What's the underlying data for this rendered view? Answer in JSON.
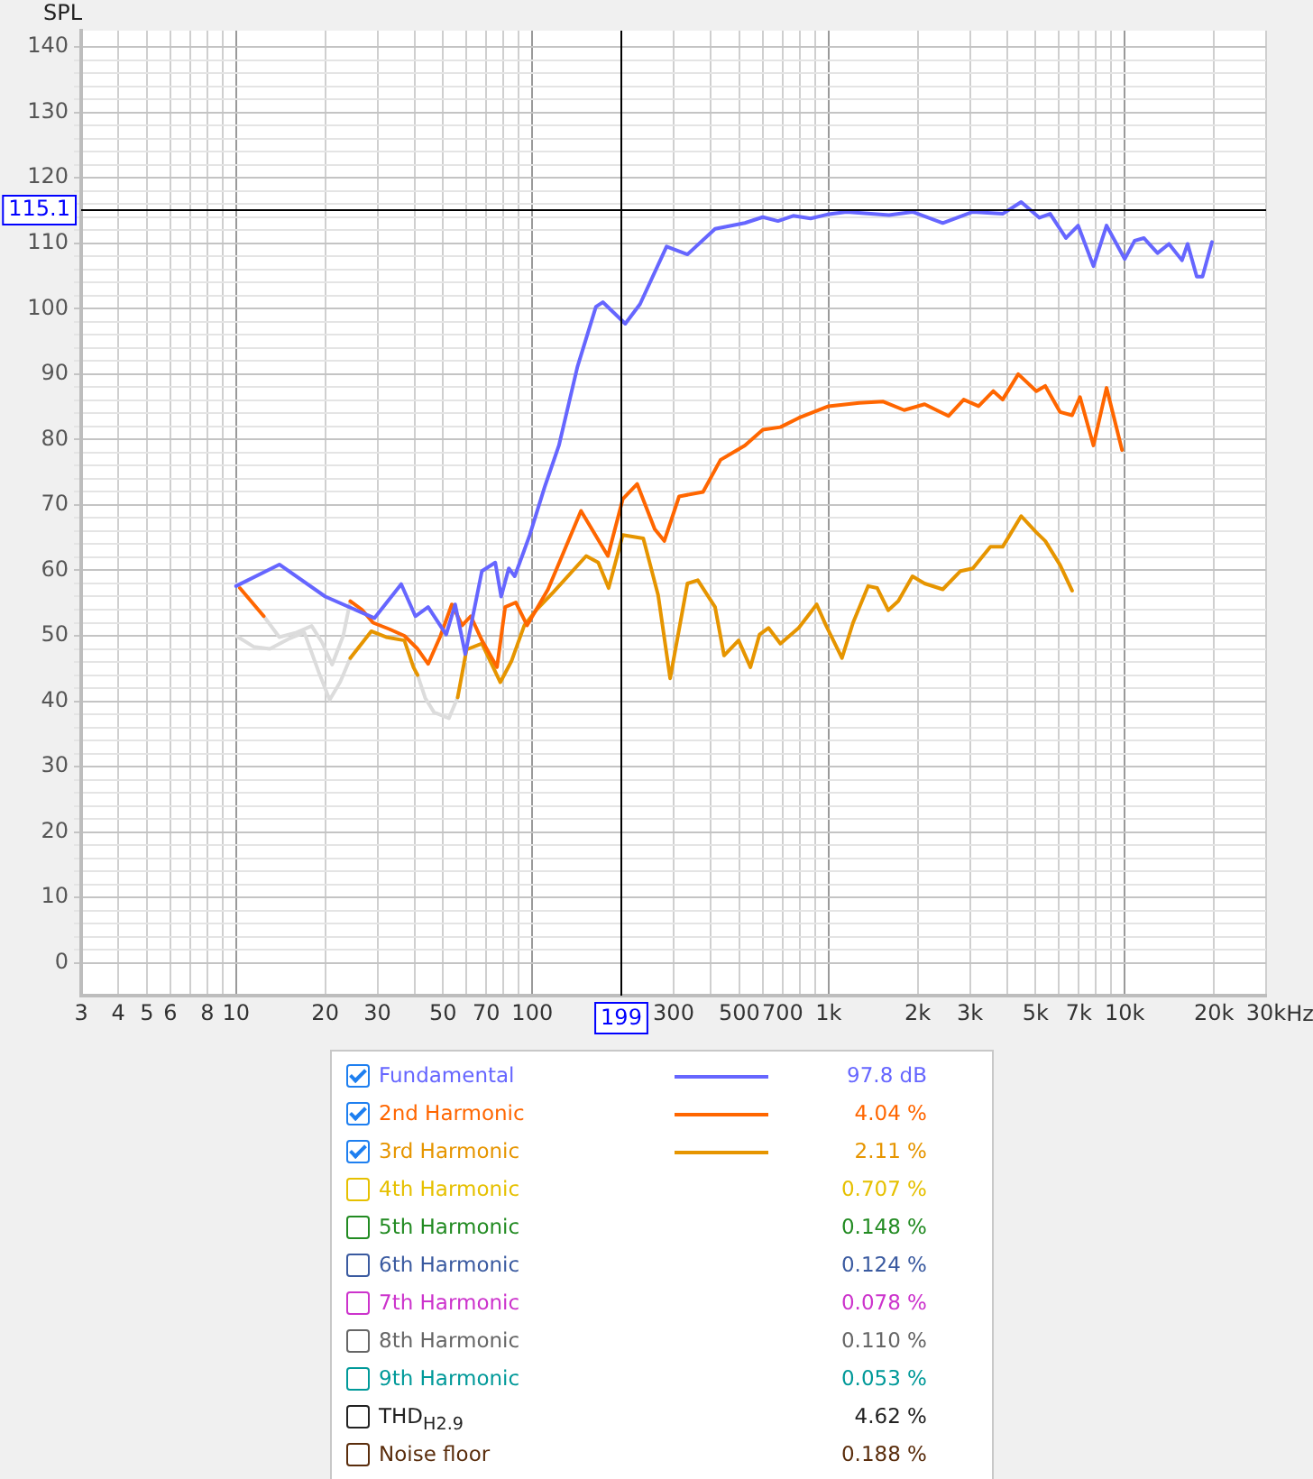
{
  "chart_data": {
    "type": "line",
    "ylabel": "SPL",
    "log": "x",
    "grid": true,
    "legend": "bottom",
    "xlim": [
      3,
      30000
    ],
    "ylim": [
      -5,
      142.5
    ],
    "xticks": [
      3,
      4,
      5,
      6,
      {
        "value": 7,
        "label": null
      },
      8,
      {
        "value": 9,
        "label": null
      },
      10,
      20,
      30,
      {
        "value": 40,
        "label": null
      },
      50,
      {
        "value": 60,
        "label": null
      },
      70,
      {
        "value": 80,
        "label": null
      },
      {
        "value": 90,
        "label": null
      },
      100,
      {
        "value": 200,
        "label": null
      },
      300,
      {
        "value": 400,
        "label": null
      },
      500,
      {
        "value": 600,
        "label": null
      },
      700,
      {
        "value": 800,
        "label": null
      },
      {
        "value": 900,
        "label": null
      },
      {
        "value": 1000,
        "label": "1k"
      },
      {
        "value": 2000,
        "label": "2k"
      },
      {
        "value": 3000,
        "label": "3k"
      },
      {
        "value": 4000,
        "label": null
      },
      {
        "value": 5000,
        "label": "5k"
      },
      {
        "value": 6000,
        "label": null
      },
      {
        "value": 7000,
        "label": "7k"
      },
      {
        "value": 8000,
        "label": null
      },
      {
        "value": 9000,
        "label": null
      },
      {
        "value": 10000,
        "label": "10k"
      },
      {
        "value": 20000,
        "label": "20k"
      },
      {
        "value": 30000,
        "label": "30k"
      }
    ],
    "xlabel": "Hz",
    "yticks": [
      0,
      {
        "value": 2,
        "label": null
      },
      {
        "value": 4,
        "label": null
      },
      {
        "value": 6,
        "label": null
      },
      {
        "value": 8,
        "label": null
      },
      10,
      {
        "value": 12,
        "label": null
      },
      {
        "value": 14,
        "label": null
      },
      {
        "value": 16,
        "label": null
      },
      {
        "value": 18,
        "label": null
      },
      20,
      {
        "value": 22,
        "label": null
      },
      {
        "value": 24,
        "label": null
      },
      {
        "value": 26,
        "label": null
      },
      {
        "value": 28,
        "label": null
      },
      30,
      {
        "value": 32,
        "label": null
      },
      {
        "value": 34,
        "label": null
      },
      {
        "value": 36,
        "label": null
      },
      {
        "value": 38,
        "label": null
      },
      40,
      {
        "value": 42,
        "label": null
      },
      {
        "value": 44,
        "label": null
      },
      {
        "value": 46,
        "label": null
      },
      {
        "value": 48,
        "label": null
      },
      50,
      {
        "value": 52,
        "label": null
      },
      {
        "value": 54,
        "label": null
      },
      {
        "value": 56,
        "label": null
      },
      {
        "value": 58,
        "label": null
      },
      60,
      {
        "value": 62,
        "label": null
      },
      {
        "value": 64,
        "label": null
      },
      {
        "value": 66,
        "label": null
      },
      {
        "value": 68,
        "label": null
      },
      70,
      {
        "value": 72,
        "label": null
      },
      {
        "value": 74,
        "label": null
      },
      {
        "value": 76,
        "label": null
      },
      {
        "value": 78,
        "label": null
      },
      80,
      {
        "value": 82,
        "label": null
      },
      {
        "value": 84,
        "label": null
      },
      {
        "value": 86,
        "label": null
      },
      {
        "value": 88,
        "label": null
      },
      90,
      {
        "value": 92,
        "label": null
      },
      {
        "value": 94,
        "label": null
      },
      {
        "value": 96,
        "label": null
      },
      {
        "value": 98,
        "label": null
      },
      100,
      {
        "value": 102,
        "label": null
      },
      {
        "value": 104,
        "label": null
      },
      {
        "value": 106,
        "label": null
      },
      {
        "value": 108,
        "label": null
      },
      110,
      {
        "value": 112,
        "label": null
      },
      {
        "value": 114,
        "label": null
      },
      {
        "value": 116,
        "label": null
      },
      {
        "value": 118,
        "label": null
      },
      120,
      {
        "value": 122,
        "label": null
      },
      {
        "value": 124,
        "label": null
      },
      {
        "value": 126,
        "label": null
      },
      {
        "value": 128,
        "label": null
      },
      130,
      {
        "value": 132,
        "label": null
      },
      {
        "value": 134,
        "label": null
      },
      {
        "value": 136,
        "label": null
      },
      {
        "value": 138,
        "label": null
      },
      140
    ],
    "ref_lines": [
      {
        "axis": "x",
        "value": 199,
        "label": "199",
        "color": "#000000"
      },
      {
        "axis": "y",
        "value": 115.1,
        "label": "115.1",
        "color": "#000000"
      }
    ],
    "annotations": [
      "97.8 dB",
      "4.04 %",
      "2.11 %",
      "0.707 %",
      "0.148 %",
      "0.124 %",
      "0.078 %",
      "0.110 %",
      "0.053 %",
      "4.62 %",
      "0.188 %"
    ],
    "series": [
      {
        "name": "Fundamental",
        "color": "#6666ff",
        "x": [
          10,
          14,
          20,
          29.3,
          36.1,
          40.3,
          44.5,
          51.2,
          54.9,
          59.4,
          67.6,
          75,
          78.5,
          83.3,
          87.2,
          93.8,
          98,
          110,
          123,
          142,
          164,
          173,
          206,
          231,
          284,
          334,
          414,
          522,
          600,
          675,
          760,
          870,
          990,
          1150,
          1600,
          1920,
          2430,
          3070,
          3870,
          4470,
          5150,
          5600,
          6330,
          6960,
          7840,
          8680,
          10000,
          10800,
          11600,
          12900,
          14100,
          15600,
          16300,
          17500,
          18300,
          19700
        ],
        "values": [
          57.6,
          60.9,
          56,
          52.7,
          57.9,
          53,
          54.4,
          50.2,
          54.8,
          47.2,
          59.9,
          61.2,
          56,
          60.3,
          59.1,
          63,
          65.4,
          72.7,
          79.1,
          91.1,
          100.3,
          101,
          97.7,
          100.7,
          109.5,
          108.3,
          112.2,
          113.1,
          114,
          113.4,
          114.2,
          113.8,
          114.4,
          114.8,
          114.3,
          114.8,
          113.1,
          114.8,
          114.5,
          116.3,
          113.9,
          114.5,
          110.8,
          112.7,
          106.5,
          112.7,
          107.6,
          110.4,
          110.8,
          108.5,
          109.9,
          107.4,
          109.9,
          104.9,
          104.9,
          110.2
        ]
      },
      {
        "name": "2nd Harmonic",
        "color": "#ff6600",
        "x": [
          10.3,
          12.4,
          13,
          24.3,
          26.6,
          29,
          33,
          37,
          41,
          44.5,
          49,
          53.5,
          58,
          62,
          67.6,
          76,
          81,
          88,
          96,
          113,
          146,
          180,
          202,
          226,
          259,
          279,
          313,
          377,
          432,
          522,
          600,
          688,
          793,
          1000,
          1270,
          1530,
          1800,
          2110,
          2540,
          2860,
          3210,
          3600,
          3870,
          4370,
          5030,
          5390,
          6050,
          6640,
          7060,
          7840,
          8680,
          9790
        ],
        "values": [
          57.3,
          53,
          null,
          55.3,
          54,
          52,
          51,
          50,
          48,
          45.7,
          50,
          54.8,
          51.6,
          53,
          49.3,
          45.2,
          54.4,
          55.1,
          51.6,
          57.1,
          69.1,
          62.2,
          70.9,
          73.2,
          66.3,
          64.5,
          71.3,
          72,
          76.9,
          79.1,
          81.5,
          81.9,
          83.3,
          85.1,
          85.6,
          85.8,
          84.5,
          85.4,
          83.6,
          86.1,
          85.1,
          87.4,
          86.1,
          90,
          87.4,
          88.2,
          84.2,
          83.7,
          86.5,
          79.1,
          87.9,
          78.4
        ]
      },
      {
        "name": "3rd Harmonic",
        "color": "#e69500",
        "x": [
          24.3,
          28.6,
          32.1,
          37,
          39.7,
          41,
          43,
          56,
          60,
          67.6,
          78,
          85,
          94,
          103,
          118,
          152,
          167,
          181,
          202,
          237,
          266,
          292,
          334,
          362,
          414,
          444,
          497,
          545,
          585,
          627,
          688,
          793,
          912,
          980,
          1110,
          1210,
          1360,
          1460,
          1590,
          1720,
          1920,
          2110,
          2430,
          2790,
          3070,
          3520,
          3870,
          4470,
          5030,
          5390,
          6050,
          6640
        ],
        "values": [
          46.6,
          50.7,
          49.8,
          49.3,
          45.2,
          44,
          null,
          40.6,
          47.9,
          48.8,
          42.9,
          46.1,
          51.6,
          53.9,
          56.7,
          62.2,
          61.2,
          57.3,
          65.4,
          64.9,
          56.2,
          43.5,
          58,
          58.5,
          54.4,
          47,
          49.3,
          45.2,
          50.2,
          51.2,
          48.8,
          51.2,
          54.8,
          51.6,
          46.6,
          52,
          57.6,
          57.3,
          53.9,
          55.3,
          59.1,
          58,
          57.1,
          59.9,
          60.3,
          63.6,
          63.6,
          68.3,
          65.8,
          64.5,
          60.8,
          56.9
        ]
      },
      {
        "name": "4th Harmonic",
        "color": "#e6c000"
      },
      {
        "name": "5th Harmonic",
        "color": "#228b22"
      },
      {
        "name": "6th Harmonic",
        "color": "#3a5aa0"
      },
      {
        "name": "7th Harmonic",
        "color": "#cc33cc"
      },
      {
        "name": "8th Harmonic",
        "color": "#666666"
      },
      {
        "name": "9th Harmonic",
        "color": "#009999"
      },
      {
        "name": "THD$_{H2.9}$",
        "color": "#222222"
      },
      {
        "name": "Noise floor",
        "color": "#5a2d0c"
      },
      {
        "color": "#dcdcdc",
        "x": [
          12.4,
          14,
          16,
          18,
          19.5,
          21.1,
          23,
          24.3
        ],
        "values": [
          53,
          49.8,
          50.5,
          51.5,
          49,
          45.6,
          50,
          55.3
        ]
      },
      {
        "color": "#dcdcdc",
        "x": [
          10,
          11.5,
          13,
          15,
          17,
          19,
          20.7,
          22.5,
          24.3,
          30,
          41,
          43.5,
          46.6,
          52.3,
          56
        ],
        "values": [
          50,
          48.3,
          48,
          49.5,
          50.5,
          44.5,
          40.2,
          43,
          46.6,
          null,
          44,
          40.5,
          38.3,
          37.4,
          40.6
        ]
      }
    ]
  }
}
